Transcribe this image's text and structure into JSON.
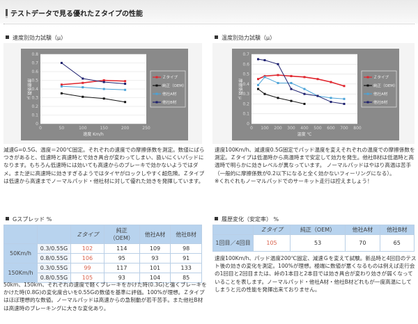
{
  "header": {
    "title": "テストデータで見る優れたＺタイプの性能"
  },
  "speed_test": {
    "title": "速度別効力試験（μ）",
    "description": "減速G=0.5G、温度＝200℃固定。それぞれの速度での摩擦係数を測定。数値にばらつきがあると、低速時と高速時とで効き具合が変わってしまい、扱いにくいパッドになります。もちろん低速時には効いても高速からのブレーキで効かないようではダメ。また逆に高速時に効きすぎるようではタイヤがロックしやすく超危険。Ｚタイプは低速から高速までノーマルパッド・他社材に対して優れた効きを発揮しています。"
  },
  "temp_test": {
    "title": "温度別効力試験（μ）",
    "description": "速度100Km/h、減速度0.5G固定でパッド温度を変えそれぞれの温度での摩擦係数を測定。Ｚタイプは低温時から高温時まで安定して効力を発生。他社B材は低温時と高温時で明らかに効きレベルが異なっています。 ノーマルパッドはやはり高温は苦手（一般的に摩擦係数が0.2以下になると全く効かないフィーリングになる）。",
    "note": "※くれぐれもノーマルパッドでのサーキット走行は控えましょう！"
  },
  "chart_data": [
    {
      "type": "line",
      "title": "速度別効力試験（μ）",
      "xlabel": "速度 Km/h",
      "ylabel": "摩擦係数 μ",
      "x": [
        50,
        100,
        150,
        200
      ],
      "xticks": [
        0,
        50,
        100,
        150,
        200,
        250
      ],
      "yticks": [
        0,
        0.1,
        0.2,
        0.3,
        0.4,
        0.5,
        0.6,
        0.7,
        0.8
      ],
      "xlim": [
        0,
        250
      ],
      "ylim": [
        0,
        0.8
      ],
      "grid": true,
      "legend_position": "right",
      "series": [
        {
          "name": "Ｚタイプ",
          "color": "#e0262e",
          "values": [
            0.45,
            0.47,
            0.5,
            0.49
          ]
        },
        {
          "name": "純正（OEM）",
          "color": "#111111",
          "values": [
            0.35,
            0.31,
            0.29,
            0.25
          ]
        },
        {
          "name": "他社A材",
          "color": "#4aa3d8",
          "values": [
            0.43,
            0.42,
            0.4,
            0.39
          ]
        },
        {
          "name": "他社B材",
          "color": "#1c1f6e",
          "values": [
            0.7,
            0.52,
            0.48,
            0.46
          ]
        }
      ]
    },
    {
      "type": "line",
      "title": "温度別効力試験（μ）",
      "xlabel": "温度 ℃",
      "ylabel": "摩擦係数 μ",
      "xticks": [
        0,
        100,
        200,
        300,
        400,
        500,
        600,
        700,
        800
      ],
      "yticks": [
        0,
        0.1,
        0.2,
        0.3,
        0.4,
        0.5,
        0.6,
        0.7
      ],
      "xlim": [
        0,
        800
      ],
      "ylim": [
        0,
        0.7
      ],
      "grid": true,
      "legend_position": "right",
      "series": [
        {
          "name": "Ｚタイプ",
          "color": "#e0262e",
          "x": [
            50,
            100,
            200,
            300,
            400,
            500,
            600,
            700
          ],
          "values": [
            0.45,
            0.48,
            0.49,
            0.48,
            0.47,
            0.45,
            0.42,
            0.38
          ]
        },
        {
          "name": "純正（OEM）",
          "color": "#111111",
          "x": [
            50,
            100,
            200,
            300,
            400
          ],
          "values": [
            0.35,
            0.3,
            0.26,
            0.23,
            0.2
          ]
        },
        {
          "name": "他社A材",
          "color": "#4aa3d8",
          "x": [
            50,
            100,
            200,
            300,
            400,
            500,
            600,
            700
          ],
          "values": [
            0.39,
            0.47,
            0.41,
            0.41,
            0.35,
            0.28,
            0.26,
            0.25
          ]
        },
        {
          "name": "他社B材",
          "color": "#1c1f6e",
          "x": [
            50,
            100,
            200,
            300,
            400,
            500,
            600,
            700
          ],
          "values": [
            0.65,
            0.64,
            0.6,
            0.35,
            0.3,
            0.28,
            0.22,
            0.2
          ]
        }
      ]
    },
    {
      "type": "table",
      "title": "Gスプレッド %",
      "columns": [
        "",
        "",
        "Ｚタイプ",
        "純正（OEM）",
        "他社A材",
        "他社B材"
      ],
      "rows": [
        [
          "50Km/h",
          "0.3/0.55G",
          "102",
          "114",
          "109",
          "98"
        ],
        [
          "50Km/h",
          "0.8/0.55G",
          "106",
          "95",
          "93",
          "91"
        ],
        [
          "150Km/h",
          "0.3/0.55G",
          "99",
          "117",
          "101",
          "133"
        ],
        [
          "150Km/h",
          "0.8/0.55G",
          "105",
          "93",
          "104",
          "85"
        ]
      ]
    },
    {
      "type": "table",
      "title": "履歴変化（安定率） %",
      "columns": [
        "",
        "Ｚタイプ",
        "純正（OEM）",
        "他社A材",
        "他社B材"
      ],
      "rows": [
        [
          "1回目／4回目",
          "105",
          "53",
          "70",
          "65"
        ]
      ]
    }
  ],
  "legend": {
    "z": "Ｚタイプ",
    "oem": "純正（OEM）",
    "a": "他社A材",
    "b": "他社B材"
  },
  "gspread": {
    "title": "Gスプレッド %",
    "headers": {
      "z": "Ｚタイプ",
      "oem1": "純正",
      "oem2": "（OEM）",
      "a": "他社A材",
      "b": "他社B材"
    },
    "groups": [
      {
        "speed": "50Km/h",
        "rows": [
          {
            "cond": "0.3/0.55G",
            "z": "102",
            "oem": "114",
            "a": "109",
            "b": "98"
          },
          {
            "cond": "0.8/0.55G",
            "z": "106",
            "oem": "95",
            "a": "93",
            "b": "91"
          }
        ]
      },
      {
        "speed": "150Km/h",
        "rows": [
          {
            "cond": "0.3/0.55G",
            "z": "99",
            "oem": "117",
            "a": "101",
            "b": "133"
          },
          {
            "cond": "0.8/0.55G",
            "z": "105",
            "oem": "93",
            "a": "104",
            "b": "85"
          }
        ]
      }
    ],
    "description": "50km、150km、それぞれの速度で軽くブレーキをかけた時(0.3G)と強くブレーキをかけた時(0.8G)の変化度合いを0.55Gの数値を基準に評価。100%が理想。Ｚタイプはほぼ理想的な数値。ノーマルパッドは高速からの急制動が若干苦手。また他社B材は高速時のブレーキングに大きな変化あり。"
  },
  "history": {
    "title": "履歴変化（安定率） %",
    "headers": {
      "z": "Ｚタイプ",
      "oem": "純正（OEM）",
      "a": "他社A材",
      "b": "他社B材"
    },
    "row": {
      "label": "1回目／4回目",
      "z": "105",
      "oem": "53",
      "a": "70",
      "b": "65"
    },
    "description": "速度100Km/h、パッド温度200℃固定、減速Ｇを変えて試験。新品時と4回目のテスト後の効きの変化を測定。100%が理想。極端に数値が悪くなるものは例えば走行会の1回目と2回目または、峠の1本目と2本目では効き具合が変わり効きが弱くなっていることを表します。ノーマルパッド・他社A材・他社B材どれもが一度高温にしてしまうと元の性能を発揮出来ておりません。"
  }
}
